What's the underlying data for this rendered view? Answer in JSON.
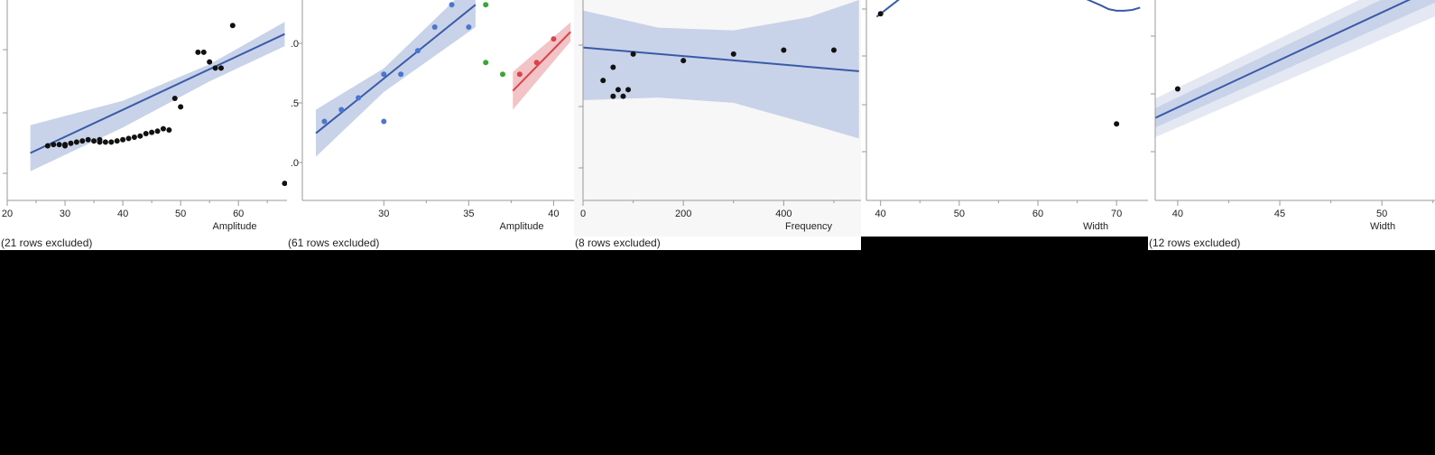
{
  "colors": {
    "background": "#000000",
    "panel_white": "#ffffff",
    "panel_gray": "#f7f7f7",
    "axis": "#9a9a9a",
    "text": "#222222",
    "fit_blue": "#3a5aa8",
    "band_blue": "#c8d2e8",
    "band_blue_outer": "#e3e8f3",
    "point_black": "#111111",
    "point_blue": "#4a76cf",
    "point_green": "#3aa63a",
    "point_red": "#d9434a",
    "fit_red": "#d9434a",
    "band_red": "#f3c4c7"
  },
  "chart_data": [
    {
      "type": "scatter",
      "xlabel": "Amplitude",
      "ylabel": "",
      "x_ticks": [
        20,
        30,
        40,
        50,
        60
      ],
      "y_ticks": [
        "",
        "",
        "",
        ""
      ],
      "footer": "(21 rows excluded)",
      "series": [
        {
          "color_key": "point_black",
          "points": [
            [
              27,
              0.13
            ],
            [
              28,
              0.14
            ],
            [
              29,
              0.14
            ],
            [
              30,
              0.14
            ],
            [
              30,
              0.13
            ],
            [
              31,
              0.15
            ],
            [
              32,
              0.16
            ],
            [
              33,
              0.17
            ],
            [
              34,
              0.18
            ],
            [
              35,
              0.17
            ],
            [
              36,
              0.18
            ],
            [
              36,
              0.16
            ],
            [
              37,
              0.16
            ],
            [
              38,
              0.16
            ],
            [
              39,
              0.17
            ],
            [
              40,
              0.18
            ],
            [
              41,
              0.19
            ],
            [
              42,
              0.2
            ],
            [
              43,
              0.21
            ],
            [
              44,
              0.23
            ],
            [
              45,
              0.24
            ],
            [
              46,
              0.25
            ],
            [
              47,
              0.27
            ],
            [
              48,
              0.26
            ],
            [
              49,
              0.52
            ],
            [
              50,
              0.45
            ],
            [
              53,
              0.9
            ],
            [
              54,
              0.9
            ],
            [
              55,
              0.82
            ],
            [
              56,
              0.77
            ],
            [
              57,
              0.77
            ],
            [
              59,
              1.12
            ],
            [
              68,
              -0.18
            ]
          ],
          "fit": {
            "x": [
              24,
              68
            ],
            "y": [
              0.07,
              1.05
            ]
          },
          "band": {
            "lower": [
              [
                24,
                -0.08
              ],
              [
                40,
                0.28
              ],
              [
                55,
                0.66
              ],
              [
                68,
                0.95
              ]
            ],
            "upper": [
              [
                24,
                0.3
              ],
              [
                40,
                0.5
              ],
              [
                55,
                0.8
              ],
              [
                68,
                1.15
              ]
            ]
          }
        }
      ]
    },
    {
      "type": "scatter",
      "xlabel": "Amplitude",
      "ylabel": "",
      "x_ticks": [
        30,
        35,
        40
      ],
      "y_ticks": [
        ".0",
        ".5",
        ".0"
      ],
      "footer": "(61 rows excluded)",
      "series": [
        {
          "color_key": "point_blue",
          "points": [
            [
              26.5,
              0.3
            ],
            [
              27.5,
              0.4
            ],
            [
              28.5,
              0.5
            ],
            [
              30,
              0.7
            ],
            [
              30,
              0.3
            ],
            [
              31,
              0.7
            ],
            [
              32,
              0.9
            ],
            [
              33,
              1.1
            ],
            [
              34,
              1.29
            ],
            [
              35,
              1.1
            ]
          ],
          "fit": {
            "x": [
              26,
              35.4
            ],
            "y": [
              0.2,
              1.29
            ]
          },
          "band": {
            "lower": [
              [
                26,
                0.0
              ],
              [
                30,
                0.55
              ],
              [
                35.4,
                1.1
              ]
            ],
            "upper": [
              [
                26,
                0.4
              ],
              [
                30,
                0.75
              ],
              [
                35.4,
                1.5
              ]
            ]
          }
        },
        {
          "color_key": "point_green",
          "points": [
            [
              36,
              1.29
            ],
            [
              36,
              0.8
            ],
            [
              37,
              0.7
            ]
          ]
        },
        {
          "color_key": "point_red",
          "points": [
            [
              38,
              0.7
            ],
            [
              39,
              0.8
            ],
            [
              40,
              1.0
            ]
          ],
          "fit": {
            "x": [
              37.6,
              41
            ],
            "y": [
              0.56,
              1.06
            ]
          },
          "band": {
            "lower": [
              [
                37.6,
                0.4
              ],
              [
                41,
                0.98
              ]
            ],
            "upper": [
              [
                37.6,
                0.72
              ],
              [
                41,
                1.14
              ]
            ]
          }
        }
      ]
    },
    {
      "type": "scatter",
      "xlabel": "Frequency",
      "ylabel": "",
      "x_ticks": [
        0,
        200,
        400
      ],
      "y_ticks": [
        "",
        "",
        "",
        ""
      ],
      "footer": "(8 rows excluded)",
      "series": [
        {
          "color_key": "point_black",
          "points": [
            [
              40,
              0.77
            ],
            [
              60,
              0.87
            ],
            [
              60,
              0.65
            ],
            [
              70,
              0.7
            ],
            [
              80,
              0.65
            ],
            [
              90,
              0.7
            ],
            [
              100,
              0.97
            ],
            [
              200,
              0.92
            ],
            [
              300,
              0.97
            ],
            [
              400,
              1.0
            ],
            [
              500,
              1.0
            ]
          ],
          "fit": {
            "x": [
              0,
              550
            ],
            "y": [
              1.02,
              0.84
            ]
          },
          "band": {
            "lower": [
              [
                0,
                0.62
              ],
              [
                150,
                0.64
              ],
              [
                300,
                0.6
              ],
              [
                450,
                0.44
              ],
              [
                550,
                0.33
              ]
            ],
            "upper": [
              [
                0,
                1.3
              ],
              [
                150,
                1.17
              ],
              [
                300,
                1.15
              ],
              [
                450,
                1.25
              ],
              [
                550,
                1.38
              ]
            ]
          }
        }
      ]
    },
    {
      "type": "scatter",
      "xlabel": "Width",
      "ylabel": "",
      "x_ticks": [
        40,
        50,
        60,
        70
      ],
      "y_ticks": [
        "",
        "",
        "",
        "",
        ""
      ],
      "footer": "",
      "series": [
        {
          "color_key": "point_black",
          "points": [
            [
              40,
              0.94
            ],
            [
              70,
              -0.5
            ]
          ],
          "fit_curve": [
            [
              39.5,
              0.9
            ],
            [
              41,
              1.02
            ],
            [
              43,
              1.18
            ],
            [
              45,
              1.3
            ],
            [
              60,
              1.3
            ],
            [
              63,
              1.25
            ],
            [
              66,
              1.14
            ],
            [
              68,
              1.05
            ],
            [
              69,
              1.0
            ],
            [
              70,
              0.98
            ],
            [
              71,
              0.98
            ],
            [
              72,
              0.99
            ],
            [
              73,
              1.02
            ]
          ]
        }
      ]
    },
    {
      "type": "scatter",
      "xlabel": "Width",
      "ylabel": "",
      "x_ticks": [
        40,
        45,
        50
      ],
      "y_ticks": [
        "",
        "",
        ""
      ],
      "footer": "(12 rows excluded)",
      "series": [
        {
          "color_key": "point_black",
          "points": [
            [
              40,
              0.49
            ]
          ],
          "fit": {
            "x": [
              38.9,
              53
            ],
            "y": [
              0.22,
              1.47
            ]
          },
          "band": {
            "lower": [
              [
                38.9,
                0.04
              ],
              [
                53,
                1.2
              ]
            ],
            "upper": [
              [
                38.9,
                0.4
              ],
              [
                53,
                1.7
              ]
            ]
          },
          "band_inner": {
            "lower": [
              [
                38.9,
                0.13
              ],
              [
                53,
                1.33
              ]
            ],
            "upper": [
              [
                38.9,
                0.31
              ],
              [
                53,
                1.6
              ]
            ]
          }
        }
      ]
    }
  ]
}
